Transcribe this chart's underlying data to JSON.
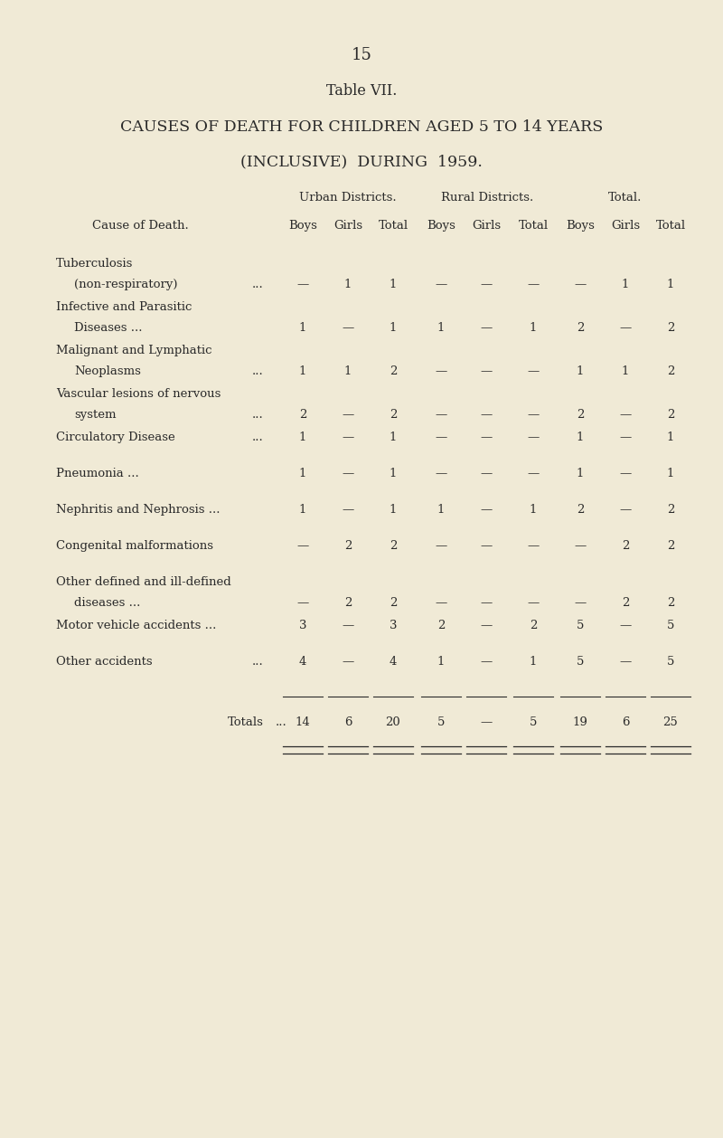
{
  "page_number": "15",
  "table_title_line1": "Table VII.",
  "table_title_line2": "CAUSES OF DEATH FOR CHILDREN AGED 5 TO 14 YEARS",
  "table_title_line3": "(INCLUSIVE)  DURING  1959.",
  "bg_color": "#f0ead6",
  "text_color": "#2a2a2a",
  "header_group1": "Urban Districts.",
  "header_group2": "Rural Districts.",
  "header_group3": "Total.",
  "col_header": "Cause of Death.",
  "sub_headers": [
    "Boys",
    "Girls",
    "Total",
    "Boys",
    "Girls",
    "Total",
    "Boys",
    "Girls",
    "Total"
  ],
  "rows": [
    {
      "label_line1": "Tuberculosis",
      "label_line2": "(non-respiratory)",
      "label_suffix": "...",
      "values": [
        "—",
        "1",
        "1",
        "—",
        "—",
        "—",
        "—",
        "1",
        "1"
      ]
    },
    {
      "label_line1": "Infective and Parasitic",
      "label_line2": "Diseases ...",
      "label_suffix": "...",
      "values": [
        "1",
        "—",
        "1",
        "1",
        "—",
        "1",
        "2",
        "—",
        "2"
      ]
    },
    {
      "label_line1": "Malignant and Lymphatic",
      "label_line2": "Neoplasms",
      "label_suffix": "...",
      "values": [
        "1",
        "1",
        "2",
        "—",
        "—",
        "—",
        "1",
        "1",
        "2"
      ]
    },
    {
      "label_line1": "Vascular lesions of nervous",
      "label_line2": "system",
      "label_suffix": "...",
      "values": [
        "2",
        "—",
        "2",
        "—",
        "—",
        "—",
        "2",
        "—",
        "2"
      ]
    },
    {
      "label_line1": "Circulatory Disease",
      "label_line2": "",
      "label_suffix": "...",
      "values": [
        "1",
        "—",
        "1",
        "—",
        "—",
        "—",
        "1",
        "—",
        "1"
      ]
    },
    {
      "label_line1": "Pneumonia ...",
      "label_line2": "",
      "label_suffix": "...",
      "values": [
        "1",
        "—",
        "1",
        "—",
        "—",
        "—",
        "1",
        "—",
        "1"
      ]
    },
    {
      "label_line1": "Nephritis and Nephrosis ...",
      "label_line2": "",
      "label_suffix": "",
      "values": [
        "1",
        "—",
        "1",
        "1",
        "—",
        "1",
        "2",
        "—",
        "2"
      ]
    },
    {
      "label_line1": "Congenital malformations",
      "label_line2": "",
      "label_suffix": "",
      "values": [
        "—",
        "2",
        "2",
        "—",
        "—",
        "—",
        "—",
        "2",
        "2"
      ]
    },
    {
      "label_line1": "Other defined and ill-defined",
      "label_line2": "diseases ...",
      "label_suffix": "...",
      "values": [
        "—",
        "2",
        "2",
        "—",
        "—",
        "—",
        "—",
        "2",
        "2"
      ]
    },
    {
      "label_line1": "Motor vehicle accidents ...",
      "label_line2": "",
      "label_suffix": "",
      "values": [
        "3",
        "—",
        "3",
        "2",
        "—",
        "2",
        "5",
        "—",
        "5"
      ]
    },
    {
      "label_line1": "Other accidents",
      "label_line2": "",
      "label_suffix": "...",
      "values": [
        "4",
        "—",
        "4",
        "1",
        "—",
        "1",
        "5",
        "—",
        "5"
      ]
    }
  ],
  "totals_label": "Totals",
  "totals_suffix": "...",
  "totals_values": [
    "14",
    "6",
    "20",
    "5",
    "—",
    "5",
    "19",
    "6",
    "25"
  ]
}
